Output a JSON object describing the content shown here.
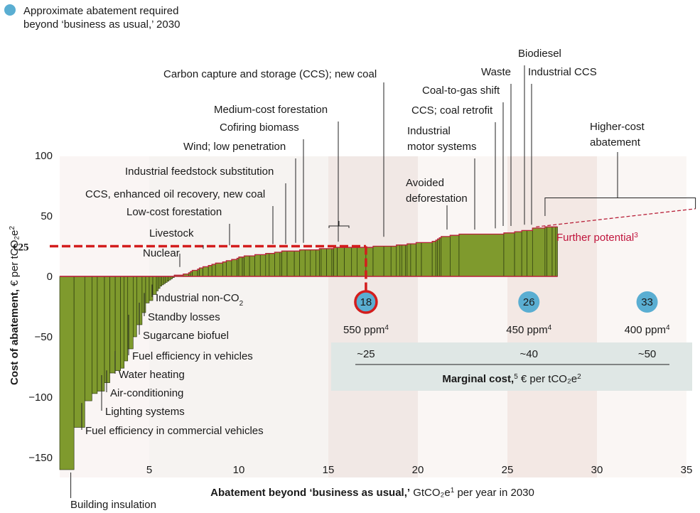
{
  "chart_data": {
    "type": "bar",
    "subtype": "marginal-abatement-cost-curve",
    "legend": {
      "label_line1": "Approximate abatement required",
      "label_line2": "beyond ‘business as usual,’ 2030",
      "marker_color": "#5aaed2",
      "placement": "top-left"
    },
    "xlabel": {
      "bold": "Abatement beyond ‘business as usual,’",
      "unit": " GtCO₂e",
      "sup": "1",
      "rest": " per year in 2030"
    },
    "ylabel": {
      "bold": "Cost of abatement,",
      "rest": " € per tCO₂e",
      "sup": "2"
    },
    "xlim": [
      0,
      35
    ],
    "ylim": [
      -160,
      105
    ],
    "xticks": [
      5,
      10,
      15,
      20,
      25,
      30,
      35
    ],
    "yticks": [
      100,
      50,
      0,
      -50,
      -100,
      -150
    ],
    "ytick_labels": [
      "100",
      "50",
      "0",
      "−50",
      "−100",
      "−150"
    ],
    "bar_color": "#7f9a2d",
    "outline_color": "#b8213a",
    "widths": [
      0.8,
      0.6,
      0.4,
      0.3,
      0.4,
      0.3,
      0.3,
      0.3,
      0.2,
      0.2,
      0.3,
      0.2,
      0.3,
      0.2,
      0.2,
      0.2,
      0.2,
      0.1,
      0.1,
      0.1,
      0.1,
      0.1,
      0.1,
      0.1,
      0.1,
      0.1,
      0.1,
      0.5,
      0.3,
      0.1,
      0.1,
      0.3,
      0.1,
      0.2,
      0.3,
      0.2,
      0.2,
      0.4,
      0.2,
      0.3,
      0.3,
      0.1,
      0.2,
      0.1,
      0.3,
      0.3,
      0.3,
      0.3,
      0.2,
      0.3,
      0.3,
      0.1,
      0.3,
      0.4,
      0.3,
      0.3,
      0.3,
      0.3,
      0.2,
      0.1,
      0.3,
      0.3,
      0.1,
      0.2,
      0.4,
      0.4,
      0.3,
      0.5,
      0.4,
      0.6,
      0.4,
      0.3,
      0.2,
      0.1,
      0.2,
      0.1,
      0.2,
      0.3,
      0.3,
      0.6,
      0.2,
      0.1,
      0.1,
      0.1,
      0.5,
      0.5,
      2.5,
      0.6,
      0.4,
      0.3,
      0.3,
      0.7,
      0.1,
      0.3,
      0.2,
      0.1
    ],
    "values": [
      -160,
      -125,
      -103,
      -97,
      -95,
      -88,
      -80,
      -78,
      -76,
      -70,
      -60,
      -50,
      -40,
      -30,
      -22,
      -20,
      -15,
      -12,
      -10,
      -8,
      -7,
      -6,
      -5,
      -4,
      -3,
      -2,
      -1,
      1,
      2,
      3,
      4,
      5,
      6,
      7,
      8,
      9,
      10,
      11,
      12,
      13,
      14,
      15,
      16,
      16,
      17,
      17,
      18,
      18,
      19,
      19,
      20,
      20,
      21,
      21,
      21,
      22,
      22,
      22,
      22,
      23,
      23,
      23,
      23,
      24,
      24,
      24,
      24,
      24,
      24,
      25,
      25,
      25,
      26,
      26,
      26,
      26,
      27,
      27,
      28,
      28,
      29,
      30,
      31,
      32,
      33,
      34,
      35,
      36,
      37,
      38,
      38,
      40,
      41,
      41,
      41,
      41
    ],
    "threshold": {
      "value": 25,
      "label": "€25",
      "x_end": 17.1
    },
    "further_potential": {
      "x": [
        26.6,
        35.5
      ],
      "y": [
        41,
        56
      ],
      "label": "Further potential",
      "sup": "3"
    },
    "bands": [
      {
        "x": [
          0,
          5
        ],
        "shade": "#faf5f4"
      },
      {
        "x": [
          5,
          15
        ],
        "shade": "#f6f3f1"
      },
      {
        "x": [
          15,
          20
        ],
        "shade": "#f1e8e5"
      },
      {
        "x": [
          20,
          25
        ],
        "shade": "#faf6f4"
      },
      {
        "x": [
          25,
          30
        ],
        "shade": "#f3e8e4"
      },
      {
        "x": [
          30,
          35
        ],
        "shade": "#faf6f4"
      }
    ],
    "markers": [
      {
        "x": 17.1,
        "value": "18",
        "ppm": "550 ppm",
        "sup": "4",
        "cost": "~25",
        "highlight": true
      },
      {
        "x": 26.2,
        "value": "26",
        "ppm": "450 ppm",
        "sup": "4",
        "cost": "~40",
        "highlight": false
      },
      {
        "x": 32.8,
        "value": "33",
        "ppm": "400 ppm",
        "sup": "4",
        "cost": "~50",
        "highlight": false
      }
    ],
    "marginal_cost": {
      "bold": "Marginal cost,",
      "sup": "5",
      "rest": " € per tCO₂e",
      "sup2": "2",
      "panel_color": "#dfe7e5"
    },
    "labels_above": [
      {
        "lines": [
          "Carbon capture and storage (CCS); new coal"
        ],
        "x": 18.1,
        "y": 31
      },
      {
        "lines": [
          "Biodiesel"
        ],
        "x": 25.6,
        "y": 41
      },
      {
        "lines": [
          "Industrial CCS"
        ],
        "x": 26.1,
        "y": 41
      },
      {
        "lines": [
          "Waste"
        ],
        "x": 25.0,
        "y": 40
      },
      {
        "lines": [
          "Coal-to-gas shift"
        ],
        "x": 24.6,
        "y": 40
      },
      {
        "lines": [
          "CCS; coal retrofit"
        ],
        "x": 24.1,
        "y": 38
      },
      {
        "lines": [
          "Industrial",
          "motor systems"
        ],
        "x": 23.0,
        "y": 37
      },
      {
        "lines": [
          "Avoided",
          "deforestation"
        ],
        "x": 21.4,
        "y": 37
      },
      {
        "lines": [
          "Medium-cost forestation"
        ],
        "x": 14.0,
        "y": 27
      },
      {
        "lines": [
          "Cofiring biomass"
        ],
        "x": 13.5,
        "y": 26
      },
      {
        "lines": [
          "Wind; low penetration"
        ],
        "x": 12.7,
        "y": 26
      },
      {
        "lines": [
          "Industrial feedstock substitution"
        ],
        "x": 12.2,
        "y": 25
      },
      {
        "lines": [
          "CCS, enhanced oil recovery, new coal"
        ],
        "x": 11.7,
        "y": 25
      },
      {
        "lines": [
          "Low-cost forestation"
        ],
        "x": 9.6,
        "y": 24
      },
      {
        "lines": [
          "Livestock"
        ],
        "x": 7.4,
        "y": 21
      },
      {
        "lines": [
          "Nuclear"
        ],
        "x": 6.8,
        "y": 6
      },
      {
        "lines": [
          "Higher-cost",
          "abatement"
        ],
        "x": 29.9,
        "y": 65
      }
    ],
    "labels_below": [
      {
        "text": "Industrial non-CO",
        "sub": "2",
        "x": 5.0
      },
      {
        "text": "Standby losses",
        "x": 4.6
      },
      {
        "text": "Sugarcane biofuel",
        "x": 4.3
      },
      {
        "text": "Fuel efficiency in vehicles",
        "x": 3.8
      },
      {
        "text": "Water heating",
        "x": 3.2
      },
      {
        "text": "Air-conditioning",
        "x": 2.9
      },
      {
        "text": "Lighting systems",
        "x": 2.3
      },
      {
        "text": "Fuel efficiency in commercial vehicles",
        "x": 1.6
      },
      {
        "text": "Building insulation",
        "x": 0.5
      }
    ]
  }
}
